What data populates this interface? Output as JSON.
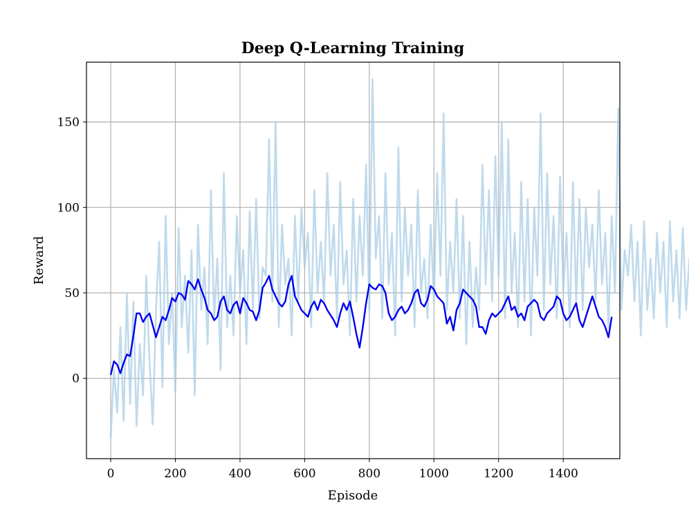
{
  "chart_data": {
    "type": "line",
    "title": "Deep Q-Learning Training",
    "xlabel": "Episode",
    "ylabel": "Reward",
    "xlim": [
      -75,
      1575
    ],
    "ylim": [
      -47,
      185
    ],
    "xticks": [
      0,
      200,
      400,
      600,
      800,
      1000,
      1200,
      1400
    ],
    "yticks": [
      0,
      50,
      100,
      150
    ],
    "xtick_labels": [
      "0",
      "200",
      "400",
      "600",
      "800",
      "1000",
      "1200",
      "1400"
    ],
    "ytick_labels": [
      "0",
      "50",
      "100",
      "150"
    ],
    "grid": true,
    "series": [
      {
        "name": "",
        "color": "#a9cde5",
        "opacity": 0.75,
        "x_step": 10,
        "x_start": 0,
        "values": [
          -35,
          5,
          -20,
          30,
          -25,
          50,
          -15,
          45,
          -28,
          20,
          -10,
          60,
          10,
          -27,
          40,
          80,
          -5,
          95,
          20,
          50,
          -8,
          88,
          30,
          60,
          15,
          75,
          -10,
          90,
          40,
          65,
          20,
          110,
          35,
          70,
          5,
          120,
          30,
          60,
          25,
          95,
          50,
          75,
          20,
          98,
          40,
          105,
          35,
          65,
          60,
          140,
          45,
          150,
          30,
          90,
          55,
          70,
          25,
          95,
          45,
          100,
          65,
          85,
          30,
          110,
          50,
          80,
          45,
          120,
          60,
          90,
          35,
          115,
          55,
          75,
          25,
          105,
          45,
          95,
          60,
          125,
          40,
          175,
          70,
          95,
          35,
          120,
          55,
          85,
          25,
          135,
          45,
          100,
          60,
          90,
          30,
          110,
          50,
          70,
          35,
          90,
          45,
          120,
          60,
          155,
          40,
          80,
          50,
          105,
          35,
          95,
          20,
          80,
          30,
          65,
          40,
          125,
          55,
          110,
          45,
          130,
          60,
          150,
          35,
          140,
          50,
          85,
          30,
          115,
          45,
          105,
          25,
          100,
          60,
          155,
          40,
          120,
          55,
          95,
          35,
          118,
          50,
          85,
          30,
          115,
          45,
          105,
          40,
          100,
          65,
          90,
          45,
          110,
          55,
          85,
          30,
          95,
          50,
          158,
          40,
          75,
          60,
          90,
          45,
          80,
          25,
          92,
          40,
          70,
          35,
          85,
          50,
          80,
          30,
          92,
          45,
          75,
          35,
          88,
          40,
          70,
          50,
          92
        ]
      },
      {
        "name": "",
        "color": "#0000ee",
        "x_step": 10,
        "x_start": 0,
        "values": [
          2,
          10,
          8,
          3,
          9,
          14,
          13,
          25,
          38,
          38,
          33,
          36,
          38,
          31,
          24,
          30,
          36,
          34,
          40,
          47,
          45,
          50,
          49,
          46,
          57,
          55,
          52,
          58,
          52,
          47,
          40,
          38,
          34,
          36,
          45,
          48,
          40,
          38,
          43,
          45,
          38,
          47,
          44,
          40,
          39,
          34,
          40,
          53,
          56,
          60,
          52,
          48,
          44,
          42,
          45,
          55,
          60,
          48,
          44,
          40,
          38,
          36,
          42,
          45,
          40,
          46,
          44,
          40,
          37,
          34,
          30,
          38,
          44,
          40,
          45,
          36,
          26,
          18,
          30,
          44,
          55,
          53,
          52,
          55,
          54,
          50,
          38,
          34,
          36,
          40,
          42,
          38,
          40,
          44,
          50,
          52,
          44,
          42,
          46,
          54,
          52,
          48,
          46,
          44,
          32,
          36,
          28,
          40,
          44,
          52,
          50,
          48,
          46,
          42,
          30,
          30,
          26,
          34,
          38,
          36,
          38,
          40,
          44,
          48,
          40,
          42,
          36,
          38,
          34,
          42,
          44,
          46,
          44,
          36,
          34,
          38,
          40,
          42,
          48,
          46,
          38,
          34,
          36,
          40,
          44,
          34,
          30,
          36,
          42,
          48,
          42,
          36,
          34,
          30,
          24,
          36
        ]
      }
    ]
  }
}
